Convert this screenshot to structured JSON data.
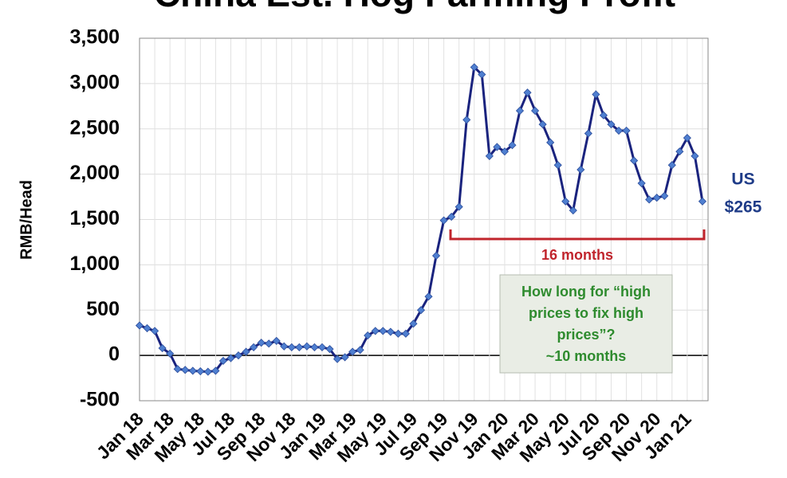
{
  "chart_data": {
    "type": "line",
    "title": "China Est. Hog Farming Profit",
    "y_label": "RMB/Head",
    "categories": [
      "Jan 18",
      null,
      null,
      null,
      "Mar 18",
      null,
      null,
      null,
      "May 18",
      null,
      null,
      null,
      "Jul 18",
      null,
      null,
      null,
      "Sep 18",
      null,
      null,
      null,
      "Nov 18",
      null,
      null,
      null,
      "Jan 19",
      null,
      null,
      null,
      "Mar 19",
      null,
      null,
      null,
      "May 19",
      null,
      null,
      null,
      "Jul 19",
      null,
      null,
      null,
      "Sep 19",
      null,
      null,
      null,
      "Nov 19",
      null,
      null,
      null,
      "Jan 20",
      null,
      null,
      null,
      "Mar 20",
      null,
      null,
      null,
      "May 20",
      null,
      null,
      null,
      "Jul 20",
      null,
      null,
      null,
      "Sep 20",
      null,
      null,
      null,
      "Nov 20",
      null,
      null,
      null,
      "Jan 21",
      null,
      null
    ],
    "series": [
      {
        "name": "Hog farming profit",
        "color": "#1a237e",
        "marker_color": "#4f7fd0",
        "values": [
          330,
          300,
          270,
          80,
          20,
          -150,
          -160,
          -170,
          -175,
          -180,
          -170,
          -60,
          -30,
          0,
          40,
          90,
          140,
          130,
          160,
          100,
          90,
          90,
          100,
          90,
          90,
          70,
          -40,
          -20,
          40,
          60,
          220,
          270,
          270,
          260,
          240,
          240,
          350,
          500,
          650,
          1100,
          1490,
          1530,
          1640,
          2600,
          3180,
          3100,
          2200,
          2300,
          2250,
          2320,
          2700,
          2900,
          2700,
          2550,
          2350,
          2100,
          1700,
          1600,
          2050,
          2450,
          2880,
          2650,
          2550,
          2480,
          2480,
          2150,
          1900,
          1720,
          1740,
          1760,
          2100,
          2250,
          2400,
          2200,
          1700
        ]
      }
    ],
    "ylim": [
      -500,
      3500
    ],
    "yticks": [
      {
        "value": -500,
        "label": "-500"
      },
      0,
      500,
      {
        "value": 1000,
        "label": "1,000"
      },
      {
        "value": 1500,
        "label": "1,500"
      },
      {
        "value": 2000,
        "label": "2,000"
      },
      {
        "value": 2500,
        "label": "2,500"
      },
      {
        "value": 3000,
        "label": "3,000"
      },
      {
        "value": 3500,
        "label": "3,500"
      }
    ],
    "grid": true,
    "annotations": {
      "end_label": [
        "US",
        "$265"
      ],
      "bracket_label": "16 months",
      "callout": [
        "How long for “high",
        "prices to fix high",
        "prices”?",
        "~10 months"
      ]
    }
  }
}
